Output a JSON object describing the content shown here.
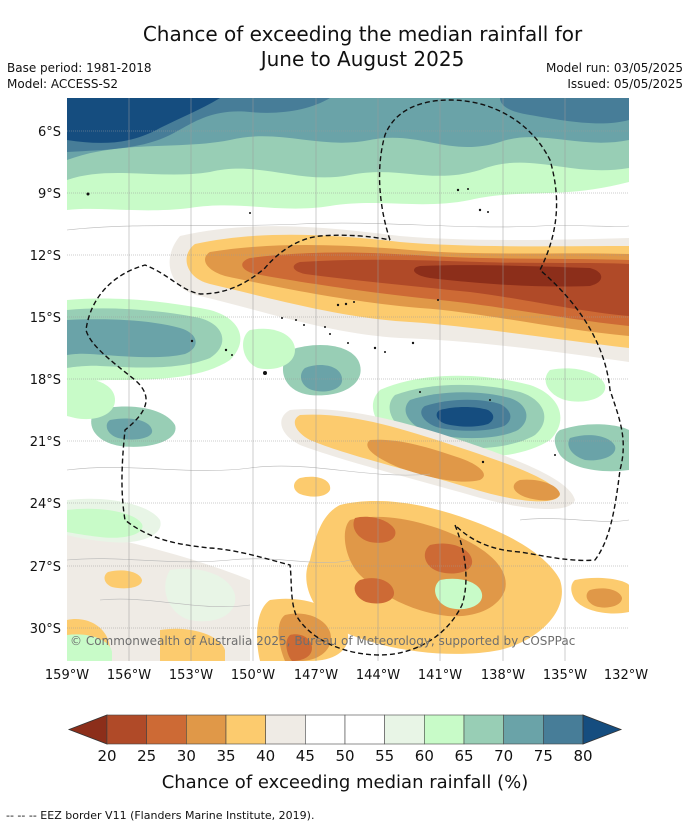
{
  "title": {
    "line1": "Chance of exceeding the median rainfall for",
    "line2": "June to August 2025"
  },
  "meta": {
    "base_period": "Base period: 1981-2018",
    "model": "Model: ACCESS-S2",
    "model_run": "Model run: 03/05/2025",
    "issued": "Issued: 05/05/2025"
  },
  "map": {
    "lat_labels": [
      "6°S",
      "9°S",
      "12°S",
      "15°S",
      "18°S",
      "21°S",
      "24°S",
      "27°S",
      "30°S"
    ],
    "lon_labels": [
      "159°W",
      "156°W",
      "153°W",
      "150°W",
      "147°W",
      "144°W",
      "141°W",
      "138°W",
      "135°W",
      "132°W"
    ],
    "credit": "© Commonwealth of Australia 2025, Bureau of Meteorology, supported by COSPPac"
  },
  "legend": {
    "title": "Chance of exceeding median rainfall (%)",
    "ticks": [
      "20",
      "25",
      "30",
      "35",
      "40",
      "45",
      "50",
      "55",
      "60",
      "65",
      "70",
      "75",
      "80"
    ],
    "colors": [
      "#8c2e1a",
      "#b04a28",
      "#cd6a35",
      "#e09848",
      "#fccb6e",
      "#efebe5",
      "#ffffff",
      "#ffffff",
      "#e8f5e6",
      "#c8fbc8",
      "#98ceb5",
      "#6aa3a8",
      "#477d98",
      "#154d7f"
    ]
  },
  "footnote": "--  --  -- EEZ border V11 (Flanders Marine Institute, 2019)."
}
